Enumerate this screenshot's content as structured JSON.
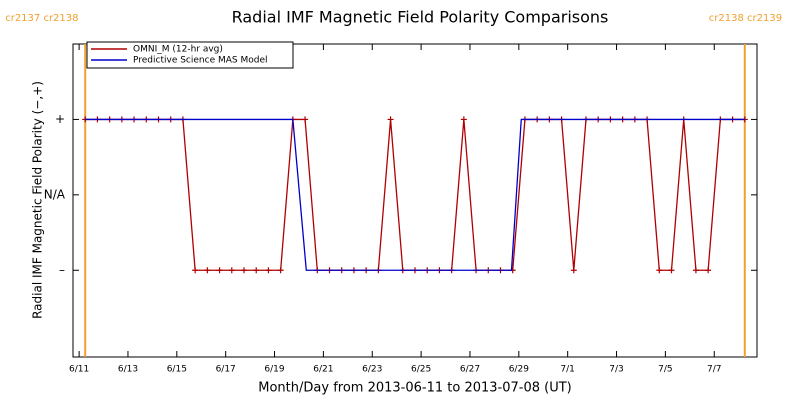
{
  "chart_data": {
    "type": "line",
    "title": "Radial IMF Magnetic Field Polarity Comparisons",
    "xlabel": "Month/Day from 2013-06-11 to 2013-07-08 (UT)",
    "ylabel": "Radial IMF Magnetic Field Polarity (−,+)",
    "xlim": [
      -0.25,
      27.75
    ],
    "xticks": [
      {
        "value": 0,
        "label": "6/11"
      },
      {
        "value": 2,
        "label": "6/13"
      },
      {
        "value": 4,
        "label": "6/15"
      },
      {
        "value": 6,
        "label": "6/17"
      },
      {
        "value": 8,
        "label": "6/19"
      },
      {
        "value": 10,
        "label": "6/21"
      },
      {
        "value": 12,
        "label": "6/23"
      },
      {
        "value": 14,
        "label": "6/25"
      },
      {
        "value": 16,
        "label": "6/27"
      },
      {
        "value": 18,
        "label": "6/29"
      },
      {
        "value": 20,
        "label": "7/1"
      },
      {
        "value": 22,
        "label": "7/3"
      },
      {
        "value": 24,
        "label": "7/5"
      },
      {
        "value": 26,
        "label": "7/7"
      }
    ],
    "ylim": [
      -2.15,
      2.0
    ],
    "yticks": [
      {
        "value": 1,
        "label": "+"
      },
      {
        "value": 0,
        "label": "N/A"
      },
      {
        "value": -1,
        "label": "–"
      }
    ],
    "legend": "upper left",
    "series": [
      {
        "name": "OMNI_M (12-hr avg)",
        "color": "#b00000",
        "markers": true,
        "x": [
          0.25,
          0.75,
          1.25,
          1.75,
          2.25,
          2.75,
          3.25,
          3.75,
          4.25,
          4.75,
          5.25,
          5.75,
          6.25,
          6.75,
          7.25,
          7.75,
          8.25,
          8.75,
          9.25,
          9.75,
          10.25,
          10.75,
          11.25,
          11.75,
          12.25,
          12.75,
          13.25,
          13.75,
          14.25,
          14.75,
          15.25,
          15.75,
          16.25,
          16.75,
          17.25,
          17.75,
          18.25,
          18.75,
          19.25,
          19.75,
          20.25,
          20.75,
          21.25,
          21.75,
          22.25,
          22.75,
          23.25,
          23.75,
          24.25,
          24.75,
          25.25,
          25.75,
          26.25,
          26.75,
          27.25
        ],
        "values": [
          1,
          1,
          1,
          1,
          1,
          1,
          1,
          1,
          1,
          -1,
          -1,
          -1,
          -1,
          -1,
          -1,
          -1,
          -1,
          1,
          1,
          -1,
          -1,
          -1,
          -1,
          -1,
          -1,
          1,
          -1,
          -1,
          -1,
          -1,
          -1,
          1,
          -1,
          -1,
          -1,
          -1,
          1,
          1,
          1,
          1,
          -1,
          1,
          1,
          1,
          1,
          1,
          1,
          -1,
          -1,
          1,
          -1,
          -1,
          1,
          1,
          1
        ]
      },
      {
        "name": "Predictive Science MAS Model",
        "color": "#0000cc",
        "markers": false,
        "x": [
          0.25,
          8.75,
          9.3,
          17.7,
          18.1,
          27.25
        ],
        "values": [
          1,
          1,
          -1,
          -1,
          1,
          1
        ]
      }
    ],
    "annotations": [
      {
        "x": 0.25,
        "label": "cr2137 cr2138",
        "color": "#f0a030"
      },
      {
        "x": 27.25,
        "label": "cr2138 cr2139",
        "color": "#f0a030"
      }
    ]
  }
}
